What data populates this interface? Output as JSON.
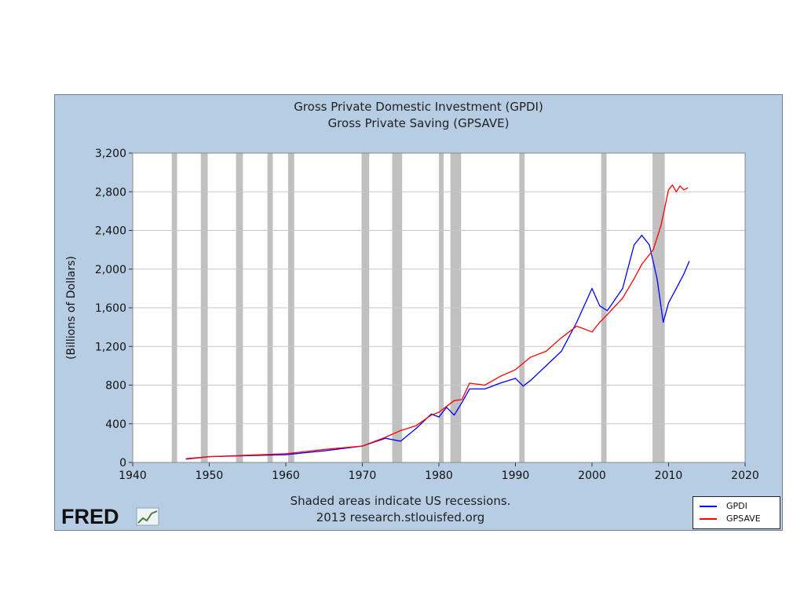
{
  "chart": {
    "title_line1": "Gross Private Domestic Investment (GPDI)",
    "title_line2": "Gross Private Saving (GPSAVE)",
    "footnote_line1": "Shaded areas indicate US recessions.",
    "footnote_line2": "2013 research.stlouisfed.org",
    "logo_text": "FRED",
    "colors": {
      "background": "#b7cde3",
      "plot": "#ffffff",
      "recession": "#c0c0c0",
      "gpdi": "#0000ff",
      "gpsave": "#ff0000",
      "grid": "#c8c8c8"
    }
  },
  "chart_data": {
    "type": "line",
    "title": "Gross Private Domestic Investment (GPDI) / Gross Private Saving (GPSAVE)",
    "xlabel": "",
    "ylabel": "(Billions of Dollars)",
    "xlim": [
      1940,
      2020
    ],
    "ylim": [
      0,
      3200
    ],
    "x_ticks": [
      1940,
      1950,
      1960,
      1970,
      1980,
      1990,
      2000,
      2010,
      2020
    ],
    "y_ticks": [
      0,
      400,
      800,
      1200,
      1600,
      2000,
      2400,
      2800,
      3200
    ],
    "y_tick_labels": [
      "0",
      "400",
      "800",
      "1,200",
      "1,600",
      "2,000",
      "2,400",
      "2,800",
      "3,200"
    ],
    "grid": true,
    "legend_position": "bottom-right",
    "recessions": [
      [
        1945.1,
        1945.8
      ],
      [
        1948.9,
        1949.8
      ],
      [
        1953.5,
        1954.4
      ],
      [
        1957.6,
        1958.3
      ],
      [
        1960.3,
        1961.1
      ],
      [
        1969.9,
        1970.9
      ],
      [
        1973.9,
        1975.2
      ],
      [
        1980.0,
        1980.5
      ],
      [
        1981.5,
        1982.9
      ],
      [
        1990.5,
        1991.2
      ],
      [
        2001.2,
        2001.9
      ],
      [
        2007.9,
        2009.5
      ]
    ],
    "series": [
      {
        "name": "GPDI",
        "color": "#0000ff",
        "x": [
          1947,
          1950,
          1955,
          1960,
          1965,
          1970,
          1973,
          1975,
          1977,
          1979,
          1980,
          1981,
          1982,
          1983,
          1984,
          1986,
          1988,
          1990,
          1991,
          1992,
          1994,
          1996,
          1998,
          2000,
          2001,
          2002,
          2004,
          2005.5,
          2006.5,
          2007.5,
          2008.5,
          2009.3,
          2010,
          2011,
          2012,
          2012.7
        ],
        "y": [
          35,
          60,
          70,
          80,
          120,
          170,
          250,
          220,
          350,
          500,
          470,
          570,
          490,
          620,
          760,
          760,
          820,
          870,
          790,
          850,
          1000,
          1150,
          1450,
          1800,
          1620,
          1570,
          1800,
          2250,
          2350,
          2250,
          1900,
          1450,
          1650,
          1800,
          1950,
          2080
        ]
      },
      {
        "name": "GPSAVE",
        "color": "#ff0000",
        "x": [
          1947,
          1950,
          1955,
          1960,
          1965,
          1970,
          1973,
          1975,
          1977,
          1979,
          1980,
          1982,
          1983,
          1984,
          1986,
          1988,
          1990,
          1992,
          1994,
          1996,
          1998,
          2000,
          2001,
          2002,
          2004,
          2005.5,
          2006.5,
          2007,
          2008,
          2009,
          2010,
          2010.5,
          2011,
          2011.5,
          2012,
          2012.5
        ],
        "y": [
          40,
          60,
          75,
          90,
          135,
          170,
          260,
          330,
          380,
          490,
          520,
          640,
          650,
          820,
          800,
          890,
          960,
          1090,
          1150,
          1290,
          1410,
          1350,
          1450,
          1530,
          1700,
          1900,
          2050,
          2100,
          2200,
          2450,
          2820,
          2870,
          2800,
          2860,
          2820,
          2840
        ]
      }
    ]
  }
}
